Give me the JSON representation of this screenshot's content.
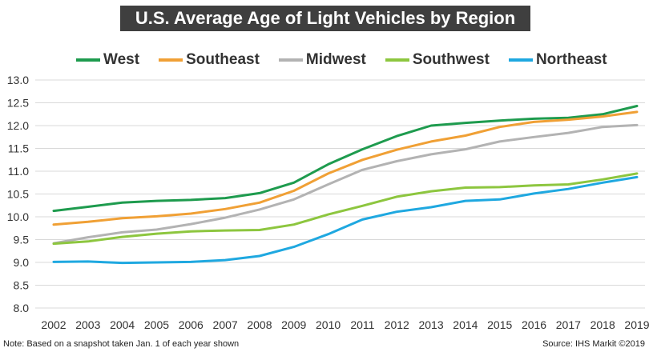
{
  "title": "U.S. Average Age of Light Vehicles by Region",
  "note": "Note: Based on a snapshot taken Jan. 1 of each year shown",
  "source": "Source: IHS Markit ©2019",
  "chart_data": {
    "type": "line",
    "title": "U.S. Average Age of Light Vehicles by Region",
    "xlabel": "",
    "ylabel": "",
    "ylim": [
      8.0,
      13.0
    ],
    "yticks": [
      "8.0",
      "8.5",
      "9.0",
      "9.5",
      "10.0",
      "10.5",
      "11.0",
      "11.5",
      "12.0",
      "12.5",
      "13.0"
    ],
    "grid": true,
    "legend_position": "top",
    "x": [
      "2002",
      "2003",
      "2004",
      "2005",
      "2006",
      "2007",
      "2008",
      "2009",
      "2010",
      "2011",
      "2012",
      "2013",
      "2014",
      "2015",
      "2016",
      "2017",
      "2018",
      "2019"
    ],
    "series": [
      {
        "name": "West",
        "color": "#1e9b4e",
        "values": [
          10.13,
          10.22,
          10.31,
          10.35,
          10.37,
          10.41,
          10.52,
          10.75,
          11.15,
          11.48,
          11.77,
          12.0,
          12.06,
          12.11,
          12.15,
          12.17,
          12.25,
          12.43
        ]
      },
      {
        "name": "Southeast",
        "color": "#f0a035",
        "values": [
          9.83,
          9.89,
          9.97,
          10.01,
          10.07,
          10.17,
          10.31,
          10.57,
          10.95,
          11.25,
          11.47,
          11.65,
          11.78,
          11.97,
          12.08,
          12.13,
          12.2,
          12.3
        ]
      },
      {
        "name": "Midwest",
        "color": "#b3b3b3",
        "values": [
          9.42,
          9.55,
          9.66,
          9.72,
          9.84,
          9.98,
          10.16,
          10.38,
          10.71,
          11.03,
          11.22,
          11.37,
          11.48,
          11.65,
          11.75,
          11.84,
          11.97,
          12.01
        ]
      },
      {
        "name": "Southwest",
        "color": "#8dc63f",
        "values": [
          9.41,
          9.46,
          9.56,
          9.63,
          9.68,
          9.7,
          9.71,
          9.83,
          10.05,
          10.24,
          10.44,
          10.56,
          10.64,
          10.65,
          10.69,
          10.71,
          10.82,
          10.95
        ]
      },
      {
        "name": "Northeast",
        "color": "#1fa8e0",
        "values": [
          9.01,
          9.02,
          8.99,
          9.0,
          9.01,
          9.05,
          9.14,
          9.34,
          9.62,
          9.94,
          10.11,
          10.21,
          10.35,
          10.38,
          10.51,
          10.61,
          10.75,
          10.87
        ]
      }
    ]
  }
}
